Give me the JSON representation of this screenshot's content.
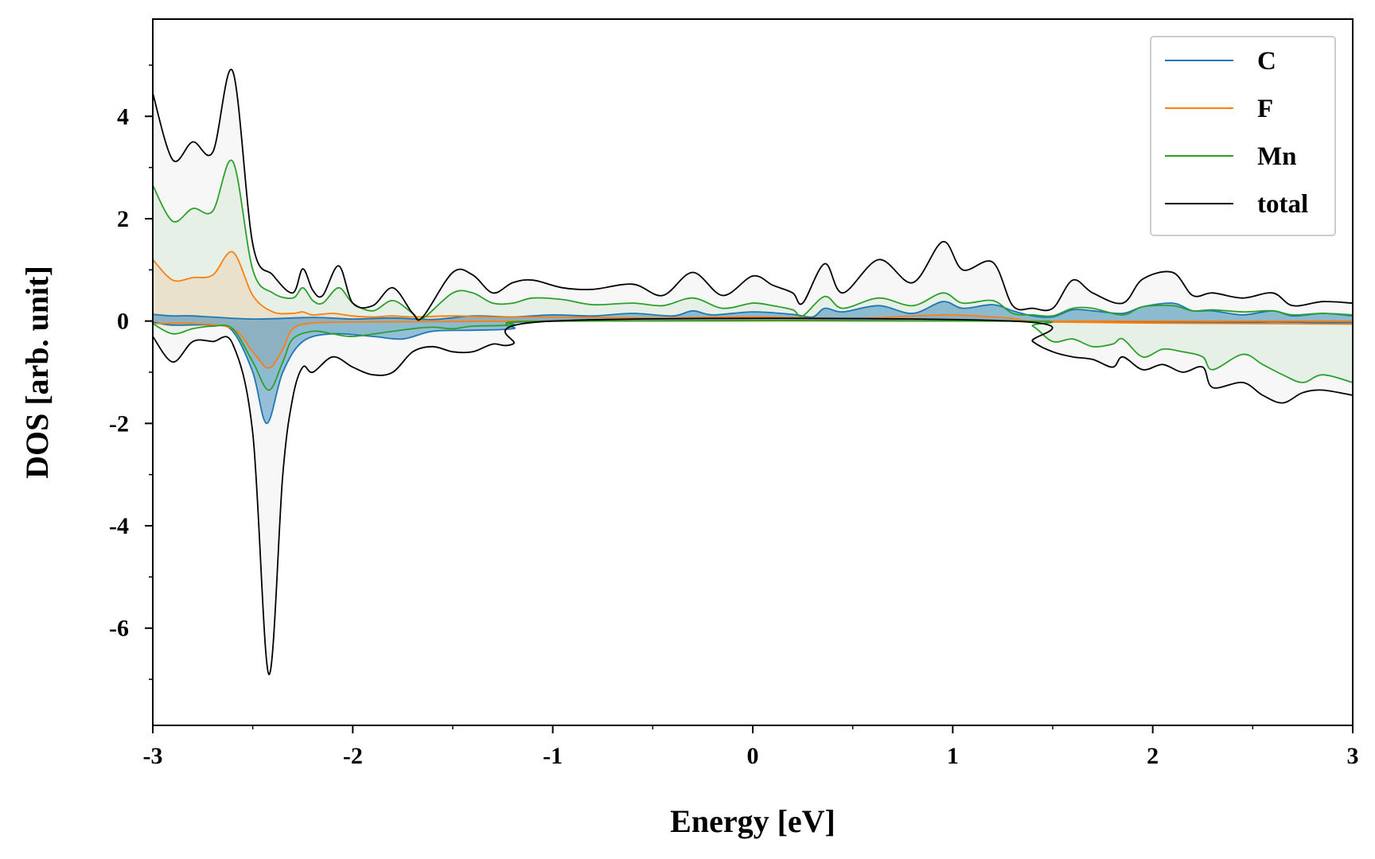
{
  "chart_data": {
    "type": "line",
    "xlabel": "Energy [eV]",
    "ylabel": "DOS [arb. unit]",
    "xlim": [
      -3,
      3
    ],
    "ylim": [
      -7.9,
      5.9
    ],
    "xticks": [
      -3,
      -2,
      -1,
      0,
      1,
      2,
      3
    ],
    "xtick_labels": [
      "-3",
      "-2",
      "-1",
      "0",
      "1",
      "2",
      "3"
    ],
    "yticks": [
      -6,
      -4,
      -2,
      0,
      2,
      4
    ],
    "ytick_labels": [
      "-6",
      "-4",
      "-2",
      "0",
      "2",
      "4"
    ],
    "grid": false,
    "legend": {
      "position": "top-right",
      "entries": [
        "C",
        "F",
        "Mn",
        "total"
      ]
    },
    "spin": {
      "up": "positive values",
      "down": "negative values"
    },
    "series": [
      {
        "name": "C",
        "color": "#1f77b4",
        "up": {
          "x": [
            -3.0,
            -2.9,
            -2.8,
            -2.5,
            -2.2,
            -2.0,
            -1.8,
            -1.6,
            -1.4,
            -1.2,
            -1.0,
            -0.8,
            -0.6,
            -0.4,
            -0.3,
            -0.2,
            0.0,
            0.2,
            0.3,
            0.36,
            0.45,
            0.63,
            0.8,
            0.95,
            1.05,
            1.2,
            1.3,
            1.4,
            1.5,
            1.6,
            1.7,
            1.85,
            1.95,
            2.1,
            2.2,
            2.3,
            2.45,
            2.6,
            2.7,
            2.85,
            3.0
          ],
          "y": [
            0.13,
            0.1,
            0.1,
            0.04,
            0.07,
            0.04,
            0.06,
            0.03,
            0.1,
            0.08,
            0.12,
            0.1,
            0.15,
            0.1,
            0.2,
            0.12,
            0.18,
            0.13,
            0.08,
            0.25,
            0.18,
            0.3,
            0.15,
            0.38,
            0.25,
            0.32,
            0.2,
            0.1,
            0.08,
            0.22,
            0.2,
            0.15,
            0.28,
            0.35,
            0.2,
            0.2,
            0.12,
            0.2,
            0.1,
            0.15,
            0.1
          ]
        },
        "down": {
          "x": [
            -3.0,
            -2.9,
            -2.7,
            -2.6,
            -2.5,
            -2.43,
            -2.35,
            -2.25,
            -2.1,
            -1.9,
            -1.75,
            -1.6,
            -1.4,
            -1.2,
            -1.0,
            1.3,
            1.4,
            1.7,
            2.0,
            2.3,
            2.6,
            2.8,
            3.0
          ],
          "y": [
            -0.02,
            -0.08,
            -0.08,
            -0.2,
            -1.0,
            -2.0,
            -1.0,
            -0.4,
            -0.25,
            -0.3,
            -0.35,
            -0.2,
            -0.18,
            -0.15,
            0.0,
            0.0,
            0.0,
            -0.01,
            -0.02,
            -0.03,
            -0.02,
            -0.03,
            -0.03
          ]
        }
      },
      {
        "name": "F",
        "color": "#ff7f0e",
        "up": {
          "x": [
            -3.0,
            -2.9,
            -2.8,
            -2.7,
            -2.6,
            -2.5,
            -2.4,
            -2.3,
            -2.25,
            -2.2,
            -2.1,
            -2.0,
            -1.9,
            -1.8,
            -1.7,
            -1.5,
            -1.3,
            -1.0,
            -0.5,
            0.0,
            0.5,
            0.95,
            1.2,
            1.3,
            1.4,
            1.7,
            2.0,
            2.5,
            3.0
          ],
          "y": [
            1.2,
            0.8,
            0.85,
            0.9,
            1.35,
            0.5,
            0.18,
            0.15,
            0.18,
            0.12,
            0.15,
            0.1,
            0.08,
            0.1,
            0.08,
            0.1,
            0.08,
            0.08,
            0.06,
            0.08,
            0.05,
            0.12,
            0.08,
            0.05,
            0.0,
            0.0,
            0.0,
            0.0,
            0.0
          ]
        },
        "down": {
          "x": [
            -3.0,
            -2.8,
            -2.6,
            -2.5,
            -2.42,
            -2.35,
            -2.3,
            -2.2,
            -2.0,
            -1.5,
            -1.0,
            1.3,
            1.5,
            2.0,
            2.5,
            3.0
          ],
          "y": [
            -0.05,
            -0.05,
            -0.15,
            -0.6,
            -0.92,
            -0.55,
            -0.15,
            -0.04,
            -0.02,
            -0.01,
            0.0,
            0.0,
            -0.02,
            -0.04,
            -0.05,
            -0.06
          ]
        }
      },
      {
        "name": "Mn",
        "color": "#2ca02c",
        "up": {
          "x": [
            -3.0,
            -2.9,
            -2.8,
            -2.7,
            -2.6,
            -2.5,
            -2.4,
            -2.3,
            -2.25,
            -2.2,
            -2.15,
            -2.07,
            -2.0,
            -1.9,
            -1.8,
            -1.7,
            -1.65,
            -1.5,
            -1.4,
            -1.3,
            -1.2,
            -1.1,
            -0.95,
            -0.8,
            -0.6,
            -0.45,
            -0.3,
            -0.15,
            0.0,
            0.1,
            0.2,
            0.25,
            0.36,
            0.45,
            0.63,
            0.8,
            0.95,
            1.05,
            1.2,
            1.3,
            1.4,
            1.5,
            1.6,
            1.7,
            1.85,
            1.95,
            2.1,
            2.2,
            2.3,
            2.45,
            2.6,
            2.7,
            2.85,
            3.0
          ],
          "y": [
            2.65,
            1.95,
            2.2,
            2.15,
            3.12,
            1.0,
            0.55,
            0.45,
            0.65,
            0.4,
            0.35,
            0.65,
            0.35,
            0.2,
            0.4,
            0.15,
            0.05,
            0.55,
            0.55,
            0.35,
            0.35,
            0.45,
            0.42,
            0.32,
            0.35,
            0.3,
            0.45,
            0.25,
            0.35,
            0.3,
            0.22,
            0.1,
            0.48,
            0.25,
            0.45,
            0.3,
            0.55,
            0.35,
            0.4,
            0.15,
            0.12,
            0.1,
            0.25,
            0.25,
            0.12,
            0.28,
            0.3,
            0.2,
            0.22,
            0.18,
            0.2,
            0.12,
            0.15,
            0.12
          ]
        },
        "down": {
          "x": [
            -3.0,
            -2.9,
            -2.8,
            -2.7,
            -2.6,
            -2.5,
            -2.42,
            -2.35,
            -2.3,
            -2.2,
            -2.1,
            -2.0,
            -1.8,
            -1.7,
            -1.6,
            -1.5,
            -1.4,
            -1.2,
            -1.0,
            1.3,
            1.4,
            1.5,
            1.6,
            1.7,
            1.8,
            1.85,
            1.95,
            2.05,
            2.15,
            2.25,
            2.3,
            2.45,
            2.55,
            2.65,
            2.75,
            2.85,
            3.0
          ],
          "y": [
            -0.05,
            -0.25,
            -0.15,
            -0.1,
            -0.15,
            -0.8,
            -1.35,
            -0.8,
            -0.35,
            -0.2,
            -0.25,
            -0.3,
            -0.2,
            -0.15,
            -0.12,
            -0.15,
            -0.1,
            -0.08,
            0.0,
            0.0,
            -0.1,
            -0.4,
            -0.35,
            -0.5,
            -0.45,
            -0.35,
            -0.7,
            -0.55,
            -0.6,
            -0.7,
            -0.95,
            -0.65,
            -0.85,
            -1.05,
            -1.2,
            -1.05,
            -1.2
          ]
        }
      },
      {
        "name": "total",
        "color": "#000000",
        "up": {
          "x": [
            -3.0,
            -2.9,
            -2.8,
            -2.7,
            -2.6,
            -2.5,
            -2.4,
            -2.3,
            -2.25,
            -2.2,
            -2.15,
            -2.07,
            -2.0,
            -1.9,
            -1.8,
            -1.7,
            -1.65,
            -1.5,
            -1.4,
            -1.3,
            -1.2,
            -1.1,
            -0.95,
            -0.8,
            -0.6,
            -0.45,
            -0.3,
            -0.15,
            0.0,
            0.1,
            0.2,
            0.25,
            0.36,
            0.45,
            0.63,
            0.8,
            0.95,
            1.05,
            1.2,
            1.3,
            1.4,
            1.5,
            1.6,
            1.7,
            1.85,
            1.95,
            2.1,
            2.2,
            2.3,
            2.45,
            2.6,
            2.7,
            2.85,
            3.0
          ],
          "y": [
            4.45,
            3.15,
            3.5,
            3.3,
            4.88,
            1.5,
            0.9,
            0.55,
            1.02,
            0.6,
            0.5,
            1.08,
            0.35,
            0.3,
            0.65,
            0.15,
            0.08,
            0.95,
            0.9,
            0.55,
            0.75,
            0.8,
            0.65,
            0.62,
            0.72,
            0.5,
            0.95,
            0.5,
            0.88,
            0.7,
            0.55,
            0.35,
            1.12,
            0.55,
            1.2,
            0.75,
            1.55,
            1.0,
            1.15,
            0.3,
            0.25,
            0.25,
            0.8,
            0.55,
            0.35,
            0.82,
            0.95,
            0.5,
            0.55,
            0.45,
            0.55,
            0.3,
            0.38,
            0.35
          ]
        },
        "down": {
          "x": [
            -3.0,
            -2.9,
            -2.8,
            -2.7,
            -2.6,
            -2.5,
            -2.42,
            -2.35,
            -2.3,
            -2.25,
            -2.2,
            -2.1,
            -2.0,
            -1.9,
            -1.8,
            -1.7,
            -1.6,
            -1.5,
            -1.4,
            -1.3,
            -1.2,
            -1.0,
            1.3,
            1.4,
            1.5,
            1.6,
            1.7,
            1.8,
            1.85,
            1.95,
            2.05,
            2.15,
            2.25,
            2.3,
            2.45,
            2.55,
            2.65,
            2.75,
            2.85,
            3.0
          ],
          "y": [
            -0.3,
            -0.8,
            -0.4,
            -0.4,
            -0.45,
            -2.2,
            -6.9,
            -3.0,
            -1.5,
            -0.9,
            -1.0,
            -0.7,
            -0.9,
            -1.05,
            -1.0,
            -0.6,
            -0.5,
            -0.6,
            -0.6,
            -0.45,
            -0.45,
            0.0,
            0.0,
            -0.4,
            -0.6,
            -0.7,
            -0.75,
            -0.9,
            -0.7,
            -0.95,
            -0.85,
            -1.0,
            -0.9,
            -1.3,
            -1.2,
            -1.45,
            -1.6,
            -1.4,
            -1.35,
            -1.45
          ]
        }
      }
    ]
  }
}
